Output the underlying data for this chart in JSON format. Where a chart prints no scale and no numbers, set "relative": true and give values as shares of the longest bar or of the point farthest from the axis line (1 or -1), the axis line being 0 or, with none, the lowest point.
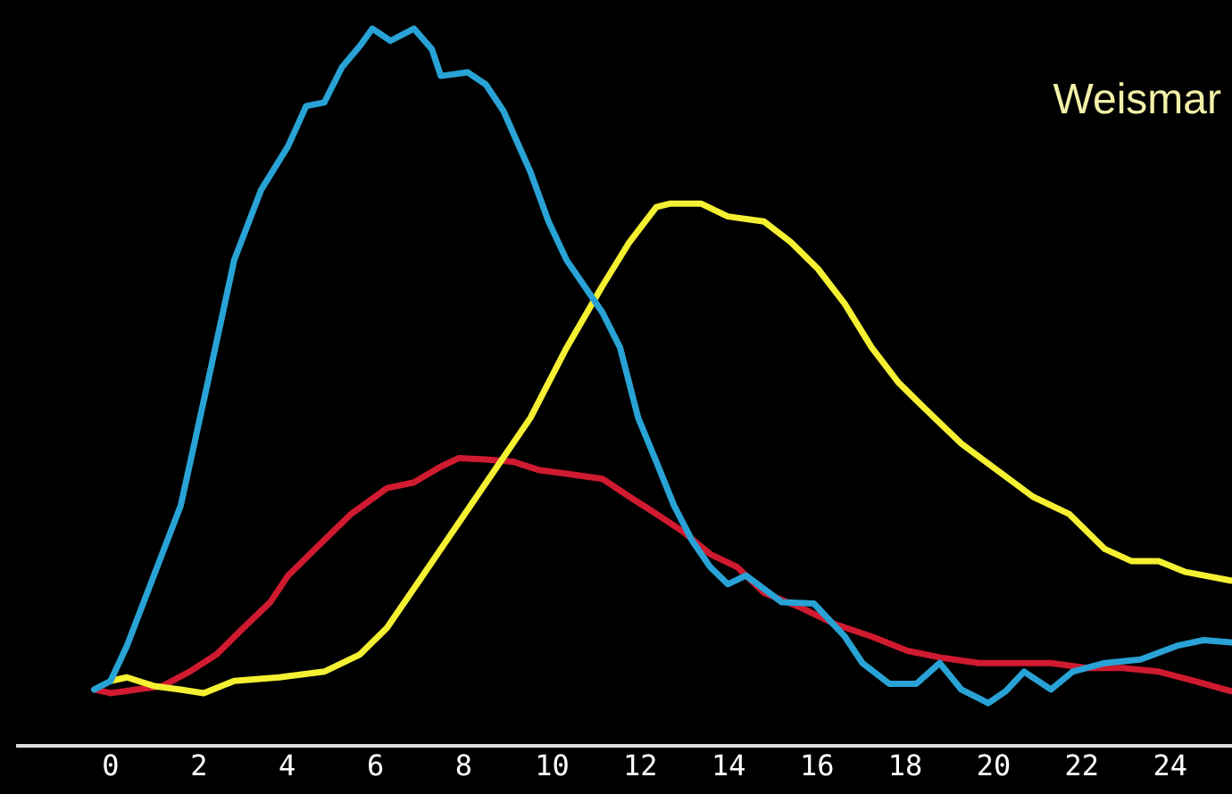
{
  "chart_data": {
    "type": "line",
    "relative": true,
    "xlim": [
      -2.1,
      25.4
    ],
    "xticks": [
      0,
      2,
      4,
      6,
      8,
      10,
      12,
      14,
      16,
      18,
      20,
      22,
      24
    ],
    "marker": "none",
    "line_style": "solid",
    "legend": false,
    "annotations": [
      "Weismar"
    ],
    "series": [
      {
        "color": "#29a3d6",
        "x": [
          -0.37,
          0,
          0.37,
          0.98,
          1.59,
          2.2,
          2.8,
          3.41,
          4.02,
          4.43,
          4.84,
          5.24,
          5.65,
          5.93,
          6.34,
          6.87,
          7.28,
          7.48,
          8.09,
          8.5,
          8.9,
          9.51,
          9.92,
          10.33,
          10.73,
          11.14,
          11.54,
          11.95,
          12.36,
          12.76,
          13.17,
          13.58,
          13.98,
          14.39,
          15.2,
          15.93,
          16.63,
          17.03,
          17.64,
          18.25,
          18.78,
          19.27,
          19.88,
          20.28,
          20.69,
          21.3,
          21.79,
          22.52,
          23.33,
          24.15,
          24.76,
          25.37
        ],
        "values": [
          0.078,
          0.09,
          0.139,
          0.237,
          0.335,
          0.506,
          0.677,
          0.775,
          0.836,
          0.892,
          0.897,
          0.946,
          0.976,
          1,
          0.983,
          1,
          0.971,
          0.934,
          0.939,
          0.922,
          0.885,
          0.8,
          0.731,
          0.677,
          0.641,
          0.604,
          0.555,
          0.457,
          0.396,
          0.335,
          0.286,
          0.249,
          0.225,
          0.237,
          0.2,
          0.198,
          0.152,
          0.115,
          0.086,
          0.086,
          0.115,
          0.078,
          0.059,
          0.076,
          0.103,
          0.078,
          0.103,
          0.115,
          0.12,
          0.139,
          0.147,
          0.144
        ]
      },
      {
        "color": "#f5f032",
        "x": [
          0,
          0.37,
          0.98,
          1.59,
          2.11,
          2.8,
          3.82,
          4.84,
          5.65,
          6.26,
          7.07,
          7.89,
          8.7,
          9.51,
          10.33,
          11.14,
          11.75,
          12.36,
          12.68,
          13.37,
          13.98,
          14.8,
          15.41,
          16.02,
          16.63,
          17.24,
          17.85,
          18.46,
          19.27,
          20.08,
          20.89,
          21.71,
          22.52,
          23.13,
          23.74,
          24.35,
          25.37
        ],
        "values": [
          0.09,
          0.095,
          0.083,
          0.078,
          0.073,
          0.09,
          0.095,
          0.103,
          0.127,
          0.164,
          0.237,
          0.311,
          0.384,
          0.457,
          0.555,
          0.641,
          0.702,
          0.751,
          0.756,
          0.756,
          0.738,
          0.731,
          0.702,
          0.665,
          0.616,
          0.555,
          0.506,
          0.469,
          0.421,
          0.384,
          0.347,
          0.323,
          0.274,
          0.257,
          0.257,
          0.242,
          0.23
        ]
      },
      {
        "color": "#d01a30",
        "x": [
          -0.37,
          0,
          0.57,
          1.18,
          1.79,
          2.4,
          3.01,
          3.62,
          4.02,
          4.63,
          5.45,
          6.26,
          6.87,
          7.48,
          7.89,
          8.5,
          9.11,
          9.72,
          10.33,
          11.14,
          11.75,
          12.36,
          12.97,
          13.58,
          14.19,
          14.8,
          15.61,
          16.42,
          17.24,
          18.05,
          18.86,
          19.67,
          20.49,
          21.3,
          22.11,
          22.93,
          23.74,
          24.55,
          25.37
        ],
        "values": [
          0.078,
          0.073,
          0.078,
          0.083,
          0.103,
          0.127,
          0.164,
          0.2,
          0.237,
          0.274,
          0.323,
          0.359,
          0.367,
          0.389,
          0.401,
          0.399,
          0.396,
          0.384,
          0.379,
          0.372,
          0.347,
          0.323,
          0.298,
          0.267,
          0.249,
          0.213,
          0.193,
          0.169,
          0.152,
          0.132,
          0.122,
          0.115,
          0.115,
          0.115,
          0.108,
          0.108,
          0.103,
          0.09,
          0.076
        ]
      }
    ]
  }
}
